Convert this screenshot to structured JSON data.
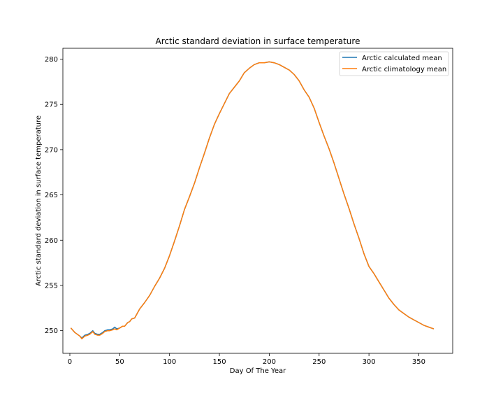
{
  "chart_data": {
    "type": "line",
    "title": "Arctic standard deviation in surface temperature",
    "xlabel": "Day Of The Year",
    "ylabel": "Arctic standard deviation in surface temperature",
    "xlim": [
      -7,
      384
    ],
    "ylim": [
      247.5,
      281.2
    ],
    "xticks": [
      0,
      50,
      100,
      150,
      200,
      250,
      300,
      350
    ],
    "yticks": [
      250,
      255,
      260,
      265,
      270,
      275,
      280
    ],
    "grid": false,
    "legend_position": "top-right",
    "series": [
      {
        "name": "Arctic calculated mean",
        "color": "#1f77b4",
        "x": [
          1,
          5,
          10,
          12,
          15,
          18,
          20,
          23,
          25,
          28,
          30,
          33,
          35,
          38,
          40,
          43,
          45,
          47,
          50,
          53,
          55,
          58,
          60,
          62,
          65,
          70,
          75,
          80,
          85,
          90,
          95,
          100,
          105,
          110,
          115,
          120,
          125,
          130,
          135,
          140,
          145,
          150,
          155,
          160,
          165,
          170,
          175,
          180,
          185,
          190,
          195,
          200,
          205,
          210,
          215,
          220,
          225,
          230,
          235,
          240,
          245,
          250,
          255,
          260,
          265,
          270,
          275,
          280,
          285,
          290,
          295,
          300,
          305,
          310,
          315,
          320,
          325,
          330,
          335,
          340,
          345,
          350,
          355,
          360,
          365
        ],
        "y": [
          250.3,
          249.8,
          249.4,
          249.2,
          249.5,
          249.6,
          249.7,
          250.0,
          249.7,
          249.6,
          249.6,
          249.8,
          250.0,
          250.1,
          250.1,
          250.2,
          250.4,
          250.2,
          250.3,
          250.5,
          250.5,
          250.9,
          251.0,
          251.3,
          251.4,
          252.4,
          253.1,
          253.9,
          254.9,
          255.8,
          256.9,
          258.3,
          259.9,
          261.6,
          263.4,
          264.8,
          266.3,
          268.0,
          269.6,
          271.3,
          272.8,
          274.0,
          275.1,
          276.2,
          276.9,
          277.6,
          278.5,
          279.0,
          279.4,
          279.6,
          279.6,
          279.7,
          279.6,
          279.4,
          279.1,
          278.8,
          278.3,
          277.6,
          276.6,
          275.8,
          274.6,
          273.0,
          271.5,
          270.1,
          268.5,
          266.8,
          265.1,
          263.5,
          261.8,
          260.2,
          258.5,
          257.1,
          256.3,
          255.4,
          254.5,
          253.6,
          252.9,
          252.3,
          251.9,
          251.5,
          251.2,
          250.9,
          250.6,
          250.4,
          250.2
        ]
      },
      {
        "name": "Arctic climatology mean",
        "color": "#ff7f0e",
        "x": [
          1,
          5,
          10,
          12,
          15,
          18,
          20,
          23,
          25,
          28,
          30,
          33,
          35,
          38,
          40,
          43,
          45,
          47,
          50,
          53,
          55,
          58,
          60,
          62,
          65,
          70,
          75,
          80,
          85,
          90,
          95,
          100,
          105,
          110,
          115,
          120,
          125,
          130,
          135,
          140,
          145,
          150,
          155,
          160,
          165,
          170,
          175,
          180,
          185,
          190,
          195,
          200,
          205,
          210,
          215,
          220,
          225,
          230,
          235,
          240,
          245,
          250,
          255,
          260,
          265,
          270,
          275,
          280,
          285,
          290,
          295,
          300,
          305,
          310,
          315,
          320,
          325,
          330,
          335,
          340,
          345,
          350,
          355,
          360,
          365
        ],
        "y": [
          250.3,
          249.8,
          249.4,
          249.1,
          249.4,
          249.5,
          249.6,
          249.9,
          249.6,
          249.5,
          249.5,
          249.7,
          249.9,
          250.0,
          250.0,
          250.1,
          250.2,
          250.1,
          250.3,
          250.5,
          250.5,
          250.9,
          251.0,
          251.3,
          251.4,
          252.4,
          253.1,
          253.9,
          254.9,
          255.8,
          256.9,
          258.3,
          259.9,
          261.6,
          263.4,
          264.8,
          266.3,
          268.0,
          269.6,
          271.3,
          272.8,
          274.0,
          275.1,
          276.2,
          276.9,
          277.6,
          278.5,
          279.0,
          279.4,
          279.6,
          279.6,
          279.7,
          279.6,
          279.4,
          279.1,
          278.8,
          278.3,
          277.6,
          276.6,
          275.8,
          274.6,
          273.0,
          271.5,
          270.1,
          268.5,
          266.8,
          265.1,
          263.5,
          261.8,
          260.2,
          258.5,
          257.1,
          256.3,
          255.4,
          254.5,
          253.6,
          252.9,
          252.3,
          251.9,
          251.5,
          251.2,
          250.9,
          250.6,
          250.4,
          250.2
        ]
      }
    ]
  }
}
